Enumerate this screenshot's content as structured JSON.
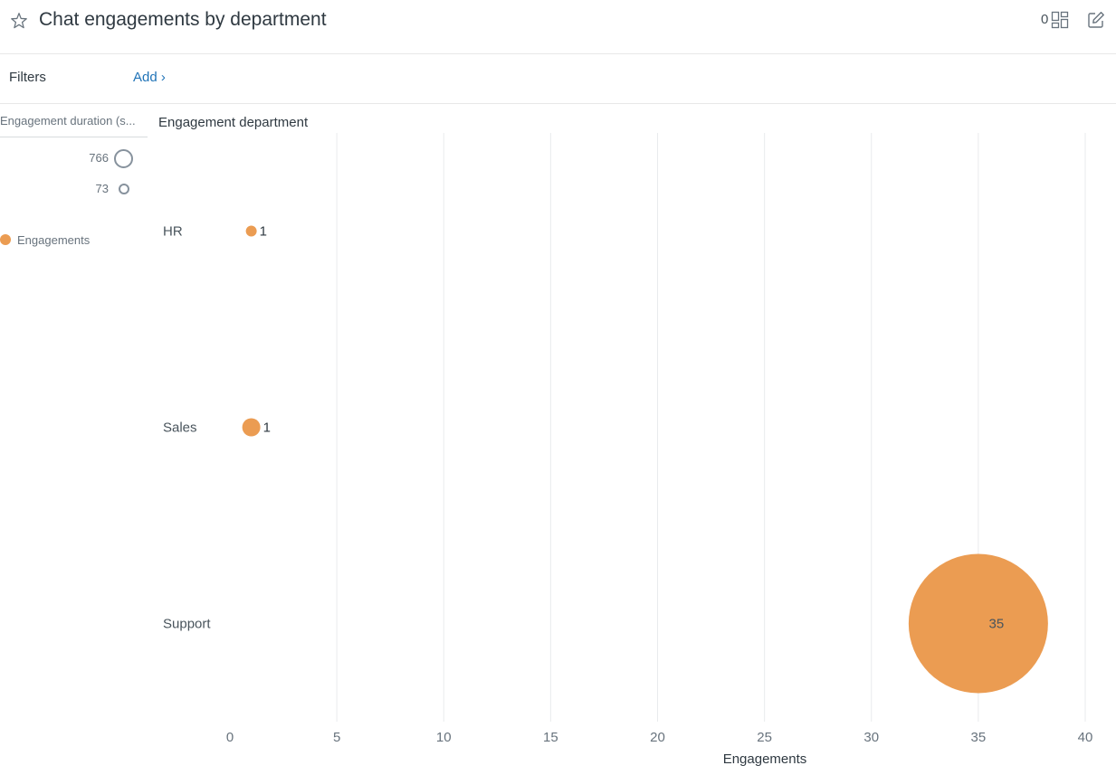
{
  "header": {
    "title": "Chat engagements by department",
    "widget_count": "0",
    "icons": {
      "favorite": "star-icon",
      "layout": "grid-icon",
      "edit": "pencil-icon"
    }
  },
  "filters": {
    "label": "Filters",
    "add_label": "Add ›"
  },
  "legend": {
    "size_title": "Engagement duration (s...",
    "size_max_label": "766",
    "size_min_label": "73",
    "series_label": "Engagements"
  },
  "colors": {
    "bubble": "#eb9c52",
    "grid": "#e9ebed",
    "link": "#1f73b7"
  },
  "chart_data": {
    "type": "scatter",
    "title": "",
    "ylabel": "Engagement department",
    "xlabel": "Engagements",
    "categories": [
      "HR",
      "Sales",
      "Support"
    ],
    "xlim": [
      0,
      40
    ],
    "xticks": [
      0,
      5,
      10,
      15,
      20,
      25,
      30,
      35,
      40
    ],
    "grid": true,
    "size_range": [
      73,
      766
    ],
    "series": [
      {
        "name": "Engagements",
        "points": [
          {
            "category": "HR",
            "x": 1,
            "size": 73,
            "label": "1"
          },
          {
            "category": "Sales",
            "x": 1,
            "size": 112,
            "label": "1"
          },
          {
            "category": "Support",
            "x": 35,
            "size": 766,
            "label": "35"
          }
        ]
      }
    ]
  }
}
